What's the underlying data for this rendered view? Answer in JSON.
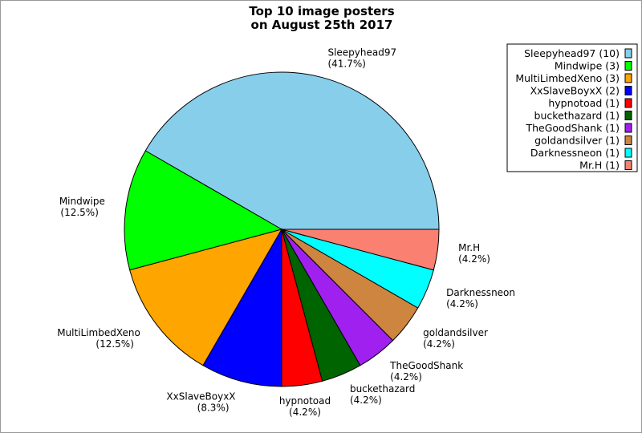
{
  "chart_data": {
    "type": "pie",
    "title": [
      "Top 10 image posters",
      "on August 25th 2017"
    ],
    "start_angle_deg": 0,
    "direction": "counterclockwise",
    "legend_placement": "top-right",
    "slices": [
      {
        "name": "Sleepyhead97",
        "value": 10,
        "percent": "41.7%",
        "legend": "Sleepyhead97 (10)",
        "color": "#87CEEB"
      },
      {
        "name": "Mindwipe",
        "value": 3,
        "percent": "12.5%",
        "legend": "Mindwipe (3)",
        "color": "#00FF00"
      },
      {
        "name": "MultiLimbedXeno",
        "value": 3,
        "percent": "12.5%",
        "legend": "MultiLimbedXeno (3)",
        "color": "#FFA500"
      },
      {
        "name": "XxSlaveBoyxX",
        "value": 2,
        "percent": "8.3%",
        "legend": "XxSlaveBoyxX (2)",
        "color": "#0000FF"
      },
      {
        "name": "hypnotoad",
        "value": 1,
        "percent": "4.2%",
        "legend": "hypnotoad (1)",
        "color": "#FF0000"
      },
      {
        "name": "buckethazard",
        "value": 1,
        "percent": "4.2%",
        "legend": "buckethazard (1)",
        "color": "#006400"
      },
      {
        "name": "TheGoodShank",
        "value": 1,
        "percent": "4.2%",
        "legend": "TheGoodShank (1)",
        "color": "#A020F0"
      },
      {
        "name": "goldandsilver",
        "value": 1,
        "percent": "4.2%",
        "legend": "goldandsilver (1)",
        "color": "#CD853F"
      },
      {
        "name": "Darknessneon",
        "value": 1,
        "percent": "4.2%",
        "legend": "Darknessneon (1)",
        "color": "#00FFFF"
      },
      {
        "name": "Mr.H",
        "value": 1,
        "percent": "4.2%",
        "legend": "Mr.H (1)",
        "color": "#FA8072"
      }
    ]
  }
}
